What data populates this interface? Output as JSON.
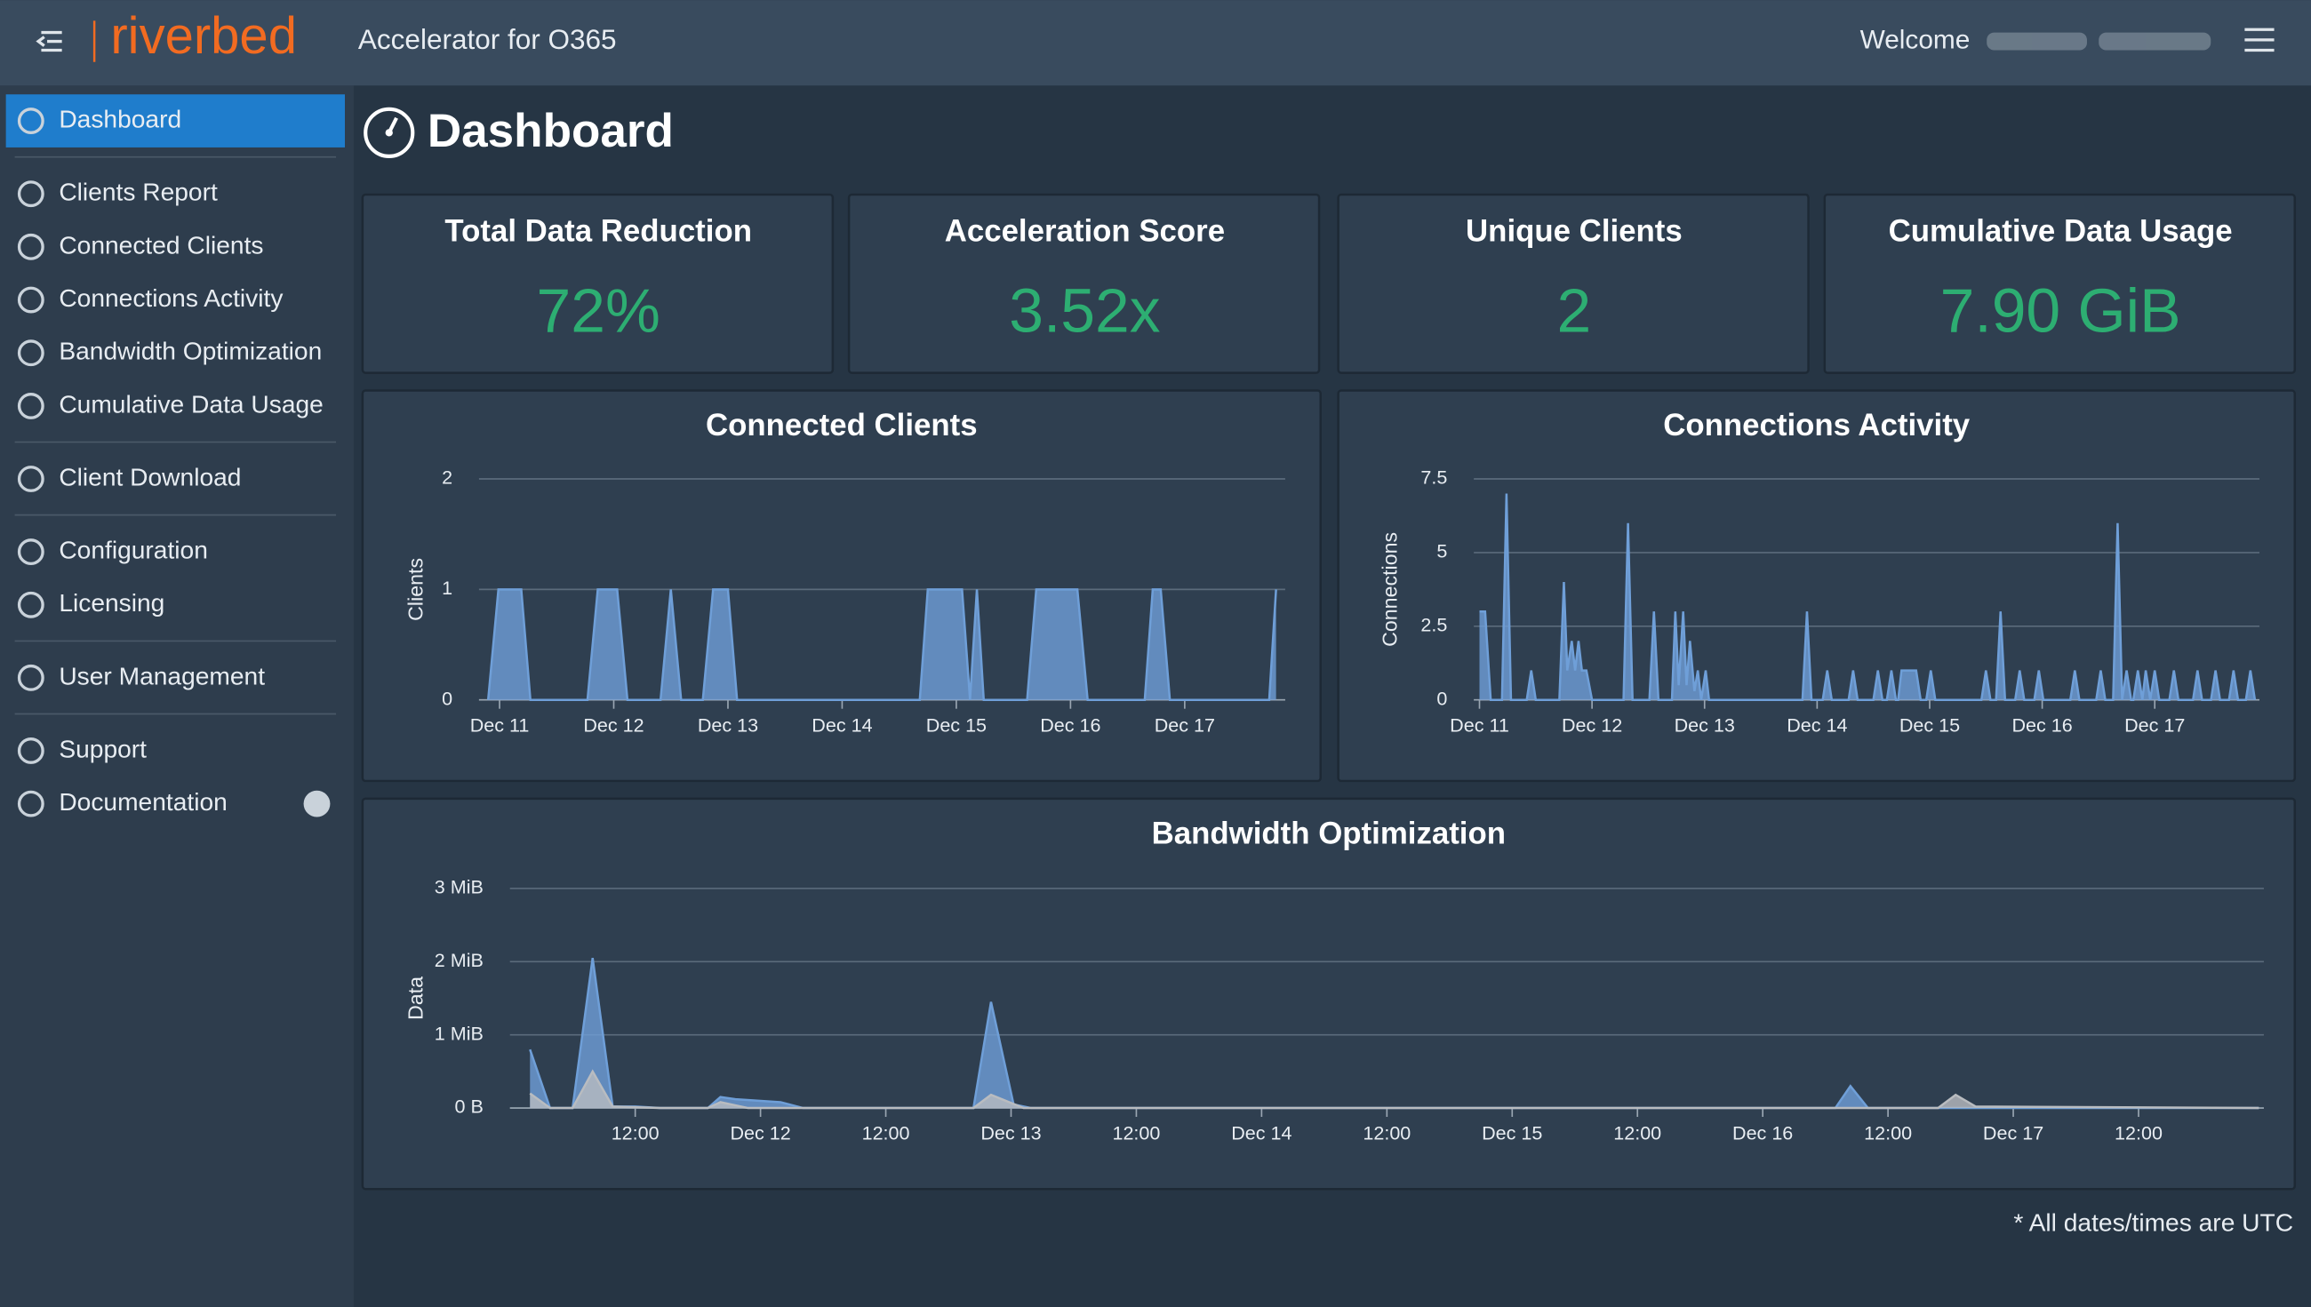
{
  "header": {
    "brand": "riverbed",
    "product": "Accelerator for O365",
    "welcome": "Welcome"
  },
  "sidebar": {
    "groups": [
      [
        "Dashboard"
      ],
      [
        "Clients Report",
        "Connected Clients",
        "Connections Activity",
        "Bandwidth Optimization",
        "Cumulative Data Usage"
      ],
      [
        "Client Download"
      ],
      [
        "Configuration",
        "Licensing"
      ],
      [
        "User Management"
      ],
      [
        "Support",
        "Documentation"
      ]
    ]
  },
  "page_title": "Dashboard",
  "cards": [
    {
      "title": "Total Data Reduction",
      "value": "72%"
    },
    {
      "title": "Acceleration Score",
      "value": "3.52x"
    },
    {
      "title": "Unique Clients",
      "value": "2"
    },
    {
      "title": "Cumulative Data Usage",
      "value": "7.90 GiB"
    }
  ],
  "chart_data": [
    {
      "type": "area",
      "title": "Connected Clients",
      "y_label": "Clients",
      "color": "#6f9fd8",
      "grid": true,
      "x": [
        10.9,
        10.99,
        11.19,
        11.27,
        11.77,
        11.86,
        12.03,
        12.12,
        12.41,
        12.5,
        12.59,
        12.78,
        12.87,
        13.0,
        13.08,
        14.68,
        14.75,
        15.05,
        15.12,
        15.18,
        15.24,
        15.62,
        15.7,
        16.06,
        16.15,
        16.65,
        16.72,
        16.79,
        16.87,
        17.74,
        17.8
      ],
      "values": [
        0,
        1,
        1,
        0,
        0,
        1,
        1,
        0,
        0,
        1,
        0,
        0,
        1,
        1,
        0,
        0,
        1,
        1,
        0,
        1,
        0,
        0,
        1,
        1,
        0,
        0,
        1,
        1,
        0,
        0,
        1
      ],
      "xlim": [
        10.82,
        17.88
      ],
      "ylim": [
        0,
        2
      ],
      "xticks": [
        {
          "value": 11,
          "label": "Dec 11"
        },
        {
          "value": 12,
          "label": "Dec 12"
        },
        {
          "value": 13,
          "label": "Dec 13"
        },
        {
          "value": 14,
          "label": "Dec 14"
        },
        {
          "value": 15,
          "label": "Dec 15"
        },
        {
          "value": 16,
          "label": "Dec 16"
        },
        {
          "value": 17,
          "label": "Dec 17"
        }
      ],
      "yticks": [
        0,
        1,
        2
      ]
    },
    {
      "type": "area",
      "title": "Connections Activity",
      "y_label": "Connections",
      "color": "#6f9fd8",
      "grid": true,
      "x": [
        11.0,
        11.05,
        11.1,
        11.2,
        11.24,
        11.28,
        11.42,
        11.46,
        11.5,
        11.71,
        11.75,
        11.78,
        11.82,
        11.85,
        11.88,
        11.91,
        11.95,
        12.0,
        12.28,
        12.32,
        12.36,
        12.51,
        12.55,
        12.59,
        12.71,
        12.74,
        12.77,
        12.81,
        12.84,
        12.87,
        12.91,
        12.94,
        12.97,
        13.01,
        13.04,
        13.87,
        13.91,
        13.95,
        14.05,
        14.09,
        14.13,
        14.28,
        14.32,
        14.36,
        14.5,
        14.54,
        14.58,
        14.62,
        14.66,
        14.7,
        14.72,
        14.75,
        14.88,
        14.92,
        14.97,
        15.01,
        15.05,
        15.46,
        15.5,
        15.54,
        15.59,
        15.63,
        15.67,
        15.76,
        15.8,
        15.84,
        15.93,
        15.97,
        16.01,
        16.25,
        16.29,
        16.33,
        16.48,
        16.52,
        16.56,
        16.63,
        16.67,
        16.71,
        16.75,
        16.79,
        16.81,
        16.85,
        16.89,
        16.92,
        16.96,
        17.0,
        17.04,
        17.13,
        17.17,
        17.21,
        17.34,
        17.38,
        17.42,
        17.5,
        17.54,
        17.58,
        17.66,
        17.7,
        17.74,
        17.81,
        17.85,
        17.89
      ],
      "values": [
        3,
        3,
        0,
        0,
        7,
        0,
        0,
        1,
        0,
        0,
        4,
        1,
        2,
        1,
        2,
        1,
        1,
        0,
        0,
        6,
        0,
        0,
        3,
        0,
        0,
        3,
        0.5,
        3,
        0.5,
        2,
        0.3,
        1,
        0,
        1,
        0,
        0,
        3,
        0,
        0,
        1,
        0,
        0,
        1,
        0,
        0,
        1,
        0,
        0,
        1,
        0,
        0,
        1,
        1,
        0,
        0,
        1,
        0,
        0,
        1,
        0,
        0,
        3,
        0,
        0,
        1,
        0,
        0,
        1,
        0,
        0,
        1,
        0,
        0,
        1,
        0,
        0,
        6,
        0,
        1,
        0,
        0,
        1,
        0,
        1,
        0,
        1,
        0,
        0,
        1,
        0,
        0,
        1,
        0,
        0,
        1,
        0,
        0,
        1,
        0,
        0,
        1,
        0
      ],
      "xlim": [
        10.95,
        17.93
      ],
      "ylim": [
        0,
        7.5
      ],
      "xticks": [
        {
          "value": 11,
          "label": "Dec 11"
        },
        {
          "value": 12,
          "label": "Dec 12"
        },
        {
          "value": 13,
          "label": "Dec 13"
        },
        {
          "value": 14,
          "label": "Dec 14"
        },
        {
          "value": 15,
          "label": "Dec 15"
        },
        {
          "value": 16,
          "label": "Dec 16"
        },
        {
          "value": 17,
          "label": "Dec 17"
        }
      ],
      "yticks": [
        0,
        2.5,
        5,
        7.5
      ]
    },
    {
      "type": "area",
      "title": "Bandwidth Optimization",
      "y_label": "Data",
      "grid": true,
      "series": [
        {
          "color": "#6f9fd8",
          "x": [
            11.08,
            11.16,
            11.25,
            11.33,
            11.41,
            11.5,
            11.6,
            11.79,
            11.84,
            11.9,
            12.08,
            12.17,
            12.85,
            12.92,
            13.01,
            13.08,
            16.29,
            16.35,
            16.42,
            17.98
          ],
          "values": [
            0.8,
            0,
            0,
            2.05,
            0.02,
            0.02,
            0,
            0,
            0.15,
            0.12,
            0.08,
            0,
            0,
            1.45,
            0.05,
            0,
            0,
            0.3,
            0,
            0
          ]
        },
        {
          "color": "#b9bcc0",
          "x": [
            11.08,
            11.16,
            11.25,
            11.33,
            11.41,
            11.6,
            11.79,
            11.84,
            11.95,
            12.85,
            12.92,
            13.05,
            16.7,
            16.77,
            16.85,
            17.98
          ],
          "values": [
            0.2,
            0,
            0,
            0.5,
            0.02,
            0,
            0,
            0.08,
            0,
            0,
            0.18,
            0,
            0,
            0.18,
            0.02,
            0
          ]
        }
      ],
      "xlim": [
        11.0,
        18.0
      ],
      "ylim": [
        0,
        3
      ],
      "xticks": [
        {
          "value": 11.5,
          "label": "12:00"
        },
        {
          "value": 12,
          "label": "Dec 12"
        },
        {
          "value": 12.5,
          "label": "12:00"
        },
        {
          "value": 13,
          "label": "Dec 13"
        },
        {
          "value": 13.5,
          "label": "12:00"
        },
        {
          "value": 14,
          "label": "Dec 14"
        },
        {
          "value": 14.5,
          "label": "12:00"
        },
        {
          "value": 15,
          "label": "Dec 15"
        },
        {
          "value": 15.5,
          "label": "12:00"
        },
        {
          "value": 16,
          "label": "Dec 16"
        },
        {
          "value": 16.5,
          "label": "12:00"
        },
        {
          "value": 17,
          "label": "Dec 17"
        },
        {
          "value": 17.5,
          "label": "12:00"
        }
      ],
      "yticks": [
        {
          "value": 0,
          "label": "0 B"
        },
        {
          "value": 1,
          "label": "1 MiB"
        },
        {
          "value": 2,
          "label": "2 MiB"
        },
        {
          "value": 3,
          "label": "3 MiB"
        }
      ]
    }
  ],
  "footnote": "* All dates/times are UTC"
}
